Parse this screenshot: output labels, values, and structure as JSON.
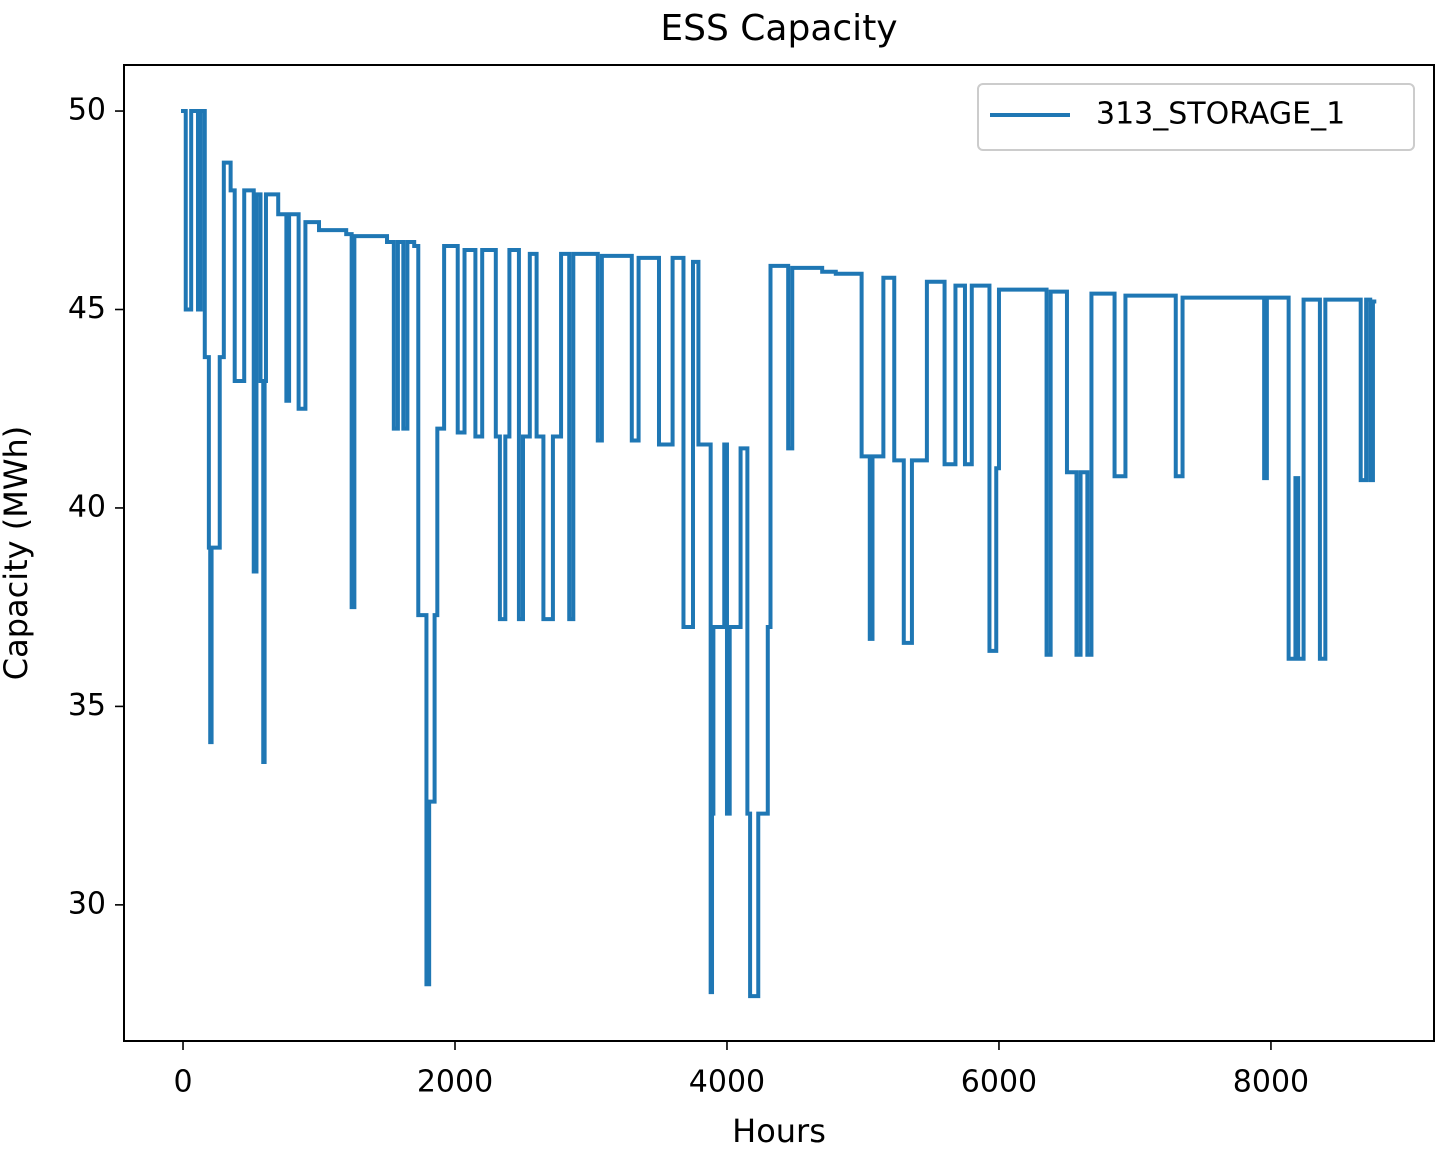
{
  "chart_data": {
    "type": "line",
    "title": "ESS Capacity",
    "x_label": "Hours",
    "y_label": "Capacity (MWh)",
    "x": [
      0,
      20,
      20,
      60,
      60,
      110,
      110,
      130,
      130,
      160,
      160,
      190,
      190,
      200,
      200,
      210,
      210,
      270,
      270,
      300,
      300,
      350,
      350,
      380,
      380,
      450,
      450,
      520,
      520,
      540,
      540,
      570,
      570,
      590,
      590,
      600,
      600,
      610,
      610,
      700,
      700,
      760,
      760,
      780,
      780,
      850,
      850,
      900,
      900,
      1000,
      1000,
      1200,
      1200,
      1240,
      1240,
      1260,
      1260,
      1500,
      1500,
      1550,
      1550,
      1580,
      1580,
      1620,
      1620,
      1650,
      1650,
      1700,
      1700,
      1730,
      1730,
      1790,
      1790,
      1810,
      1810,
      1850,
      1850,
      1870,
      1870,
      1920,
      1920,
      2020,
      2020,
      2070,
      2070,
      2150,
      2150,
      2200,
      2200,
      2300,
      2300,
      2330,
      2330,
      2370,
      2370,
      2400,
      2400,
      2470,
      2470,
      2500,
      2500,
      2550,
      2550,
      2600,
      2600,
      2650,
      2650,
      2720,
      2720,
      2780,
      2780,
      2840,
      2840,
      2870,
      2870,
      3050,
      3050,
      3080,
      3080,
      3300,
      3300,
      3350,
      3350,
      3500,
      3500,
      3600,
      3600,
      3680,
      3680,
      3750,
      3750,
      3790,
      3790,
      3880,
      3880,
      3890,
      3890,
      3900,
      3900,
      3980,
      3980,
      4000,
      4000,
      4020,
      4020,
      4100,
      4100,
      4150,
      4150,
      4170,
      4170,
      4230,
      4230,
      4300,
      4300,
      4320,
      4320,
      4450,
      4450,
      4480,
      4480,
      4700,
      4700,
      4800,
      4800,
      4990,
      4990,
      5050,
      5050,
      5070,
      5070,
      5150,
      5150,
      5230,
      5230,
      5300,
      5300,
      5360,
      5360,
      5470,
      5470,
      5600,
      5600,
      5680,
      5680,
      5750,
      5750,
      5800,
      5800,
      5930,
      5930,
      5980,
      5980,
      6000,
      6000,
      6350,
      6350,
      6380,
      6380,
      6500,
      6500,
      6570,
      6570,
      6600,
      6600,
      6650,
      6650,
      6680,
      6680,
      6850,
      6850,
      6930,
      6930,
      7300,
      7300,
      7350,
      7350,
      7950,
      7950,
      7970,
      7970,
      8130,
      8130,
      8180,
      8180,
      8200,
      8200,
      8240,
      8240,
      8360,
      8360,
      8400,
      8400,
      8660,
      8660,
      8700,
      8700,
      8730,
      8730,
      8750,
      8750,
      8760
    ],
    "series": [
      {
        "name": "313_STORAGE_1",
        "color": "#1f77b4",
        "values": [
          50,
          50,
          45,
          45,
          50,
          50,
          45,
          45,
          50,
          50,
          43.8,
          43.8,
          39,
          39,
          34.1,
          34.1,
          39,
          39,
          43.8,
          43.8,
          48.7,
          48.7,
          48,
          48,
          43.2,
          43.2,
          48,
          48,
          38.4,
          38.4,
          47.9,
          47.9,
          43.2,
          43.2,
          33.6,
          33.6,
          43.2,
          43.2,
          47.9,
          47.9,
          47.4,
          47.4,
          42.7,
          42.7,
          47.4,
          47.4,
          42.5,
          42.5,
          47.2,
          47.2,
          47,
          47,
          46.9,
          46.9,
          37.5,
          37.5,
          46.85,
          46.85,
          46.7,
          46.7,
          42,
          42,
          46.7,
          46.7,
          42,
          42,
          46.7,
          46.7,
          46.6,
          46.6,
          37.3,
          37.3,
          28,
          28,
          32.6,
          32.6,
          37.3,
          37.3,
          42,
          42,
          46.6,
          46.6,
          41.9,
          41.9,
          46.5,
          46.5,
          41.8,
          41.8,
          46.5,
          46.5,
          41.8,
          41.8,
          37.2,
          37.2,
          41.8,
          41.8,
          46.5,
          46.5,
          37.2,
          37.2,
          41.8,
          41.8,
          46.4,
          46.4,
          41.8,
          41.8,
          37.2,
          37.2,
          41.8,
          41.8,
          46.4,
          46.4,
          37.2,
          37.2,
          46.4,
          46.4,
          41.7,
          41.7,
          46.35,
          46.35,
          41.7,
          41.7,
          46.3,
          46.3,
          41.6,
          41.6,
          46.3,
          46.3,
          37,
          37,
          46.2,
          46.2,
          41.6,
          41.6,
          27.8,
          27.8,
          32.3,
          32.3,
          37,
          37,
          41.6,
          41.6,
          32.3,
          32.3,
          37,
          37,
          41.5,
          41.5,
          32.3,
          32.3,
          27.7,
          27.7,
          32.3,
          32.3,
          37,
          37,
          46.1,
          46.1,
          41.5,
          41.5,
          46.05,
          46.05,
          45.95,
          45.95,
          45.9,
          45.9,
          41.3,
          41.3,
          36.7,
          36.7,
          41.3,
          41.3,
          45.8,
          45.8,
          41.2,
          41.2,
          36.6,
          36.6,
          41.2,
          41.2,
          45.7,
          45.7,
          41.1,
          41.1,
          45.6,
          45.6,
          41.1,
          41.1,
          45.6,
          45.6,
          36.4,
          36.4,
          41,
          41,
          45.5,
          45.5,
          36.3,
          36.3,
          45.45,
          45.45,
          40.9,
          40.9,
          36.3,
          36.3,
          40.9,
          40.9,
          36.3,
          36.3,
          45.4,
          45.4,
          40.8,
          40.8,
          45.35,
          45.35,
          40.8,
          40.8,
          45.3,
          45.3,
          40.75,
          40.75,
          45.3,
          45.3,
          36.2,
          36.2,
          40.75,
          40.75,
          36.2,
          36.2,
          45.25,
          45.25,
          36.2,
          36.2,
          45.25,
          45.25,
          40.7,
          40.7,
          45.25,
          45.25,
          40.7,
          40.7,
          45.2,
          45.2
        ]
      }
    ],
    "xlim": [
      -434,
      9199
    ],
    "ylim": [
      26.57,
      51.16
    ],
    "xticks": [
      0,
      2000,
      4000,
      6000,
      8000
    ],
    "yticks": [
      30,
      35,
      40,
      45,
      50
    ],
    "grid": false,
    "legend": "upper right"
  }
}
